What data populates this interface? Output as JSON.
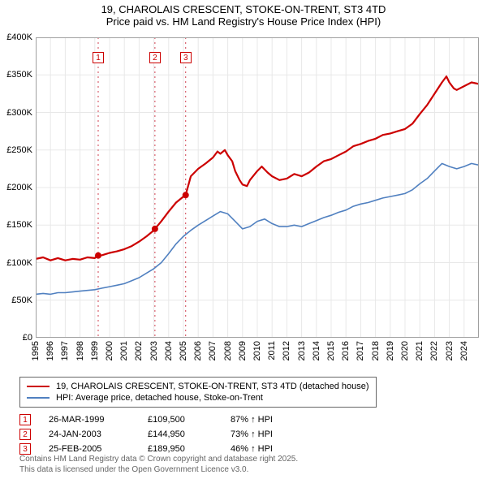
{
  "title1": "19, CHAROLAIS CRESCENT, STOKE-ON-TRENT, ST3 4TD",
  "title2": "Price paid vs. HM Land Registry's House Price Index (HPI)",
  "chart": {
    "type": "line",
    "background_color": "#ffffff",
    "grid_color": "#e8e8e8",
    "axis_color": "#a0a0a0",
    "x_min": 1995,
    "x_max": 2025,
    "x_step": 1,
    "y_min": 0,
    "y_max": 400000,
    "y_step": 50000,
    "y_tick_labels": [
      "£0",
      "£50K",
      "£100K",
      "£150K",
      "£200K",
      "£250K",
      "£300K",
      "£350K",
      "£400K"
    ],
    "x_tick_labels": [
      "1995",
      "1996",
      "1997",
      "1998",
      "1999",
      "2000",
      "2001",
      "2002",
      "2003",
      "2004",
      "2005",
      "2006",
      "2007",
      "2008",
      "2009",
      "2010",
      "2011",
      "2012",
      "2013",
      "2014",
      "2015",
      "2016",
      "2017",
      "2018",
      "2019",
      "2020",
      "2021",
      "2022",
      "2023",
      "2024"
    ],
    "marker_line_color": "#d04050",
    "marker_line_dash": "2,4",
    "series": [
      {
        "name": "19, CHAROLAIS CRESCENT, STOKE-ON-TRENT, ST3 4TD (detached house)",
        "color": "#cc0000",
        "width": 2.2,
        "points": [
          [
            1995.0,
            105000
          ],
          [
            1995.5,
            107000
          ],
          [
            1996.0,
            103000
          ],
          [
            1996.5,
            106000
          ],
          [
            1997.0,
            103000
          ],
          [
            1997.5,
            105000
          ],
          [
            1998.0,
            104000
          ],
          [
            1998.5,
            107000
          ],
          [
            1999.0,
            106000
          ],
          [
            1999.23,
            109500
          ],
          [
            1999.5,
            110000
          ],
          [
            2000.0,
            113000
          ],
          [
            2000.5,
            115000
          ],
          [
            2001.0,
            118000
          ],
          [
            2001.5,
            122000
          ],
          [
            2002.0,
            128000
          ],
          [
            2002.5,
            135000
          ],
          [
            2003.0,
            143000
          ],
          [
            2003.07,
            144950
          ],
          [
            2003.5,
            155000
          ],
          [
            2004.0,
            168000
          ],
          [
            2004.5,
            180000
          ],
          [
            2005.0,
            188000
          ],
          [
            2005.15,
            189950
          ],
          [
            2005.5,
            215000
          ],
          [
            2006.0,
            225000
          ],
          [
            2006.5,
            232000
          ],
          [
            2007.0,
            240000
          ],
          [
            2007.3,
            248000
          ],
          [
            2007.5,
            245000
          ],
          [
            2007.8,
            250000
          ],
          [
            2008.0,
            243000
          ],
          [
            2008.3,
            235000
          ],
          [
            2008.5,
            222000
          ],
          [
            2008.8,
            210000
          ],
          [
            2009.0,
            204000
          ],
          [
            2009.3,
            202000
          ],
          [
            2009.5,
            210000
          ],
          [
            2010.0,
            222000
          ],
          [
            2010.3,
            228000
          ],
          [
            2010.7,
            220000
          ],
          [
            2011.0,
            215000
          ],
          [
            2011.5,
            210000
          ],
          [
            2012.0,
            212000
          ],
          [
            2012.5,
            218000
          ],
          [
            2013.0,
            215000
          ],
          [
            2013.5,
            220000
          ],
          [
            2014.0,
            228000
          ],
          [
            2014.5,
            235000
          ],
          [
            2015.0,
            238000
          ],
          [
            2015.5,
            243000
          ],
          [
            2016.0,
            248000
          ],
          [
            2016.5,
            255000
          ],
          [
            2017.0,
            258000
          ],
          [
            2017.5,
            262000
          ],
          [
            2018.0,
            265000
          ],
          [
            2018.5,
            270000
          ],
          [
            2019.0,
            272000
          ],
          [
            2019.5,
            275000
          ],
          [
            2020.0,
            278000
          ],
          [
            2020.5,
            285000
          ],
          [
            2021.0,
            298000
          ],
          [
            2021.5,
            310000
          ],
          [
            2022.0,
            325000
          ],
          [
            2022.5,
            340000
          ],
          [
            2022.8,
            348000
          ],
          [
            2023.0,
            340000
          ],
          [
            2023.3,
            332000
          ],
          [
            2023.5,
            330000
          ],
          [
            2024.0,
            335000
          ],
          [
            2024.5,
            340000
          ],
          [
            2025.0,
            338000
          ]
        ]
      },
      {
        "name": "HPI: Average price, detached house, Stoke-on-Trent",
        "color": "#5080c0",
        "width": 1.6,
        "points": [
          [
            1995.0,
            58000
          ],
          [
            1995.5,
            59000
          ],
          [
            1996.0,
            58000
          ],
          [
            1996.5,
            60000
          ],
          [
            1997.0,
            60000
          ],
          [
            1997.5,
            61000
          ],
          [
            1998.0,
            62000
          ],
          [
            1998.5,
            63000
          ],
          [
            1999.0,
            64000
          ],
          [
            1999.5,
            66000
          ],
          [
            2000.0,
            68000
          ],
          [
            2000.5,
            70000
          ],
          [
            2001.0,
            72000
          ],
          [
            2001.5,
            76000
          ],
          [
            2002.0,
            80000
          ],
          [
            2002.5,
            86000
          ],
          [
            2003.0,
            92000
          ],
          [
            2003.5,
            100000
          ],
          [
            2004.0,
            112000
          ],
          [
            2004.5,
            125000
          ],
          [
            2005.0,
            135000
          ],
          [
            2005.5,
            143000
          ],
          [
            2006.0,
            150000
          ],
          [
            2006.5,
            156000
          ],
          [
            2007.0,
            162000
          ],
          [
            2007.5,
            168000
          ],
          [
            2008.0,
            165000
          ],
          [
            2008.5,
            155000
          ],
          [
            2009.0,
            145000
          ],
          [
            2009.5,
            148000
          ],
          [
            2010.0,
            155000
          ],
          [
            2010.5,
            158000
          ],
          [
            2011.0,
            152000
          ],
          [
            2011.5,
            148000
          ],
          [
            2012.0,
            148000
          ],
          [
            2012.5,
            150000
          ],
          [
            2013.0,
            148000
          ],
          [
            2013.5,
            152000
          ],
          [
            2014.0,
            156000
          ],
          [
            2014.5,
            160000
          ],
          [
            2015.0,
            163000
          ],
          [
            2015.5,
            167000
          ],
          [
            2016.0,
            170000
          ],
          [
            2016.5,
            175000
          ],
          [
            2017.0,
            178000
          ],
          [
            2017.5,
            180000
          ],
          [
            2018.0,
            183000
          ],
          [
            2018.5,
            186000
          ],
          [
            2019.0,
            188000
          ],
          [
            2019.5,
            190000
          ],
          [
            2020.0,
            192000
          ],
          [
            2020.5,
            197000
          ],
          [
            2021.0,
            205000
          ],
          [
            2021.5,
            212000
          ],
          [
            2022.0,
            222000
          ],
          [
            2022.5,
            232000
          ],
          [
            2023.0,
            228000
          ],
          [
            2023.5,
            225000
          ],
          [
            2024.0,
            228000
          ],
          [
            2024.5,
            232000
          ],
          [
            2025.0,
            230000
          ]
        ]
      }
    ],
    "markers": [
      {
        "n": "1",
        "x": 1999.23,
        "y": 109500,
        "color": "#cc0000"
      },
      {
        "n": "2",
        "x": 2003.07,
        "y": 144950,
        "color": "#cc0000"
      },
      {
        "n": "3",
        "x": 2005.15,
        "y": 189950,
        "color": "#cc0000"
      }
    ]
  },
  "legend": {
    "rows": [
      {
        "color": "#cc0000",
        "label": "19, CHAROLAIS CRESCENT, STOKE-ON-TRENT, ST3 4TD (detached house)"
      },
      {
        "color": "#5080c0",
        "label": "HPI: Average price, detached house, Stoke-on-Trent"
      }
    ]
  },
  "sales": [
    {
      "n": "1",
      "color": "#cc0000",
      "date": "26-MAR-1999",
      "price": "£109,500",
      "pct": "87% ↑ HPI"
    },
    {
      "n": "2",
      "color": "#cc0000",
      "date": "24-JAN-2003",
      "price": "£144,950",
      "pct": "73% ↑ HPI"
    },
    {
      "n": "3",
      "color": "#cc0000",
      "date": "25-FEB-2005",
      "price": "£189,950",
      "pct": "46% ↑ HPI"
    }
  ],
  "footnote1": "Contains HM Land Registry data © Crown copyright and database right 2025.",
  "footnote2": "This data is licensed under the Open Government Licence v3.0."
}
